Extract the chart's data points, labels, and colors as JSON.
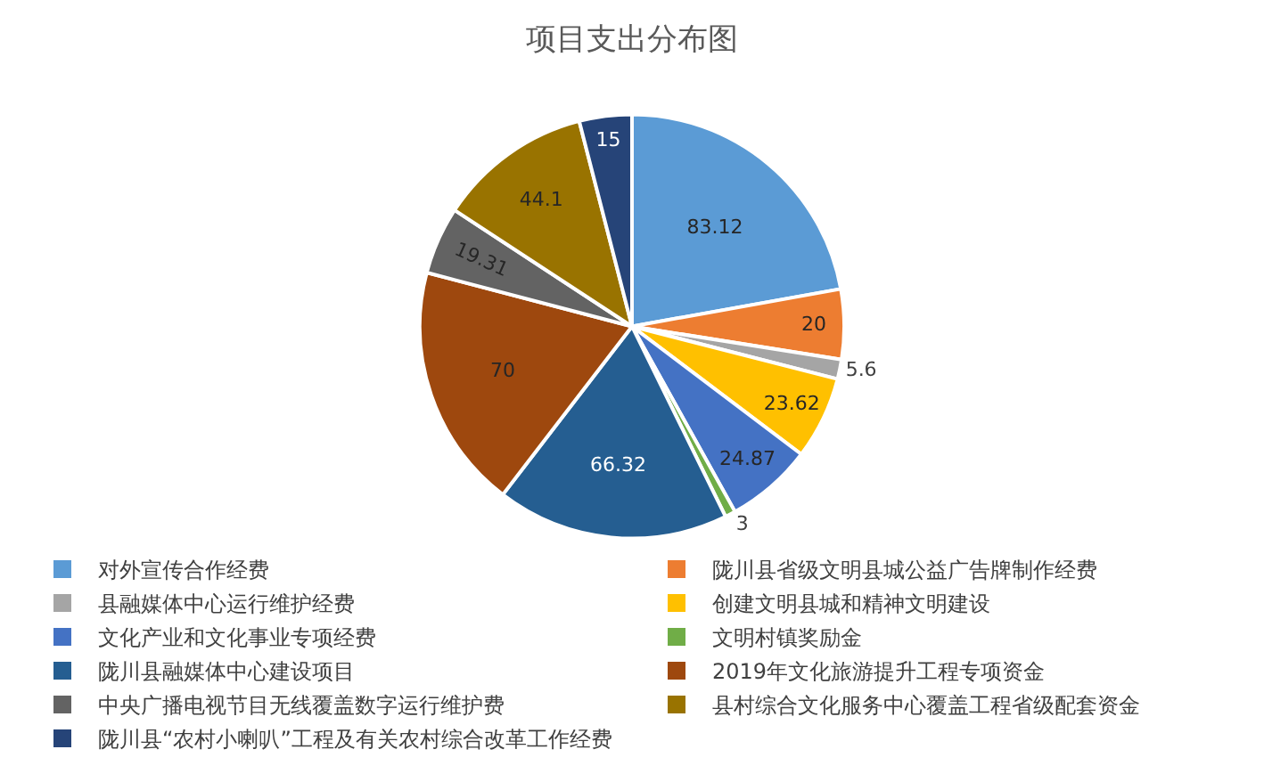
{
  "chart_data": {
    "type": "pie",
    "title": "项目支出分布图",
    "categories": [
      "对外宣传合作经费",
      "陇川县省级文明县城公益广告牌制作经费",
      "县融媒体中心运行维护经费",
      "创建文明县城和精神文明建设",
      "文化产业和文化事业专项经费",
      "文明村镇奖励金",
      "陇川县融媒体中心建设项目",
      "2019年文化旅游提升工程专项资金",
      "中央广播电视节目无线覆盖数字运行维护费",
      "县村综合文化服务中心覆盖工程省级配套资金",
      "陇川县“农村小喇叭”工程及有关农村综合改革工作经费"
    ],
    "values": [
      83.12,
      20,
      5.6,
      23.62,
      24.87,
      3,
      66.32,
      70,
      19.31,
      44.1,
      15
    ],
    "colors": [
      "#5b9bd5",
      "#ed7d31",
      "#a5a5a5",
      "#ffc000",
      "#4472c4",
      "#70ad47",
      "#255e91",
      "#9e480e",
      "#636363",
      "#997300",
      "#264478"
    ],
    "data_labels": true,
    "legend": "bottom"
  }
}
